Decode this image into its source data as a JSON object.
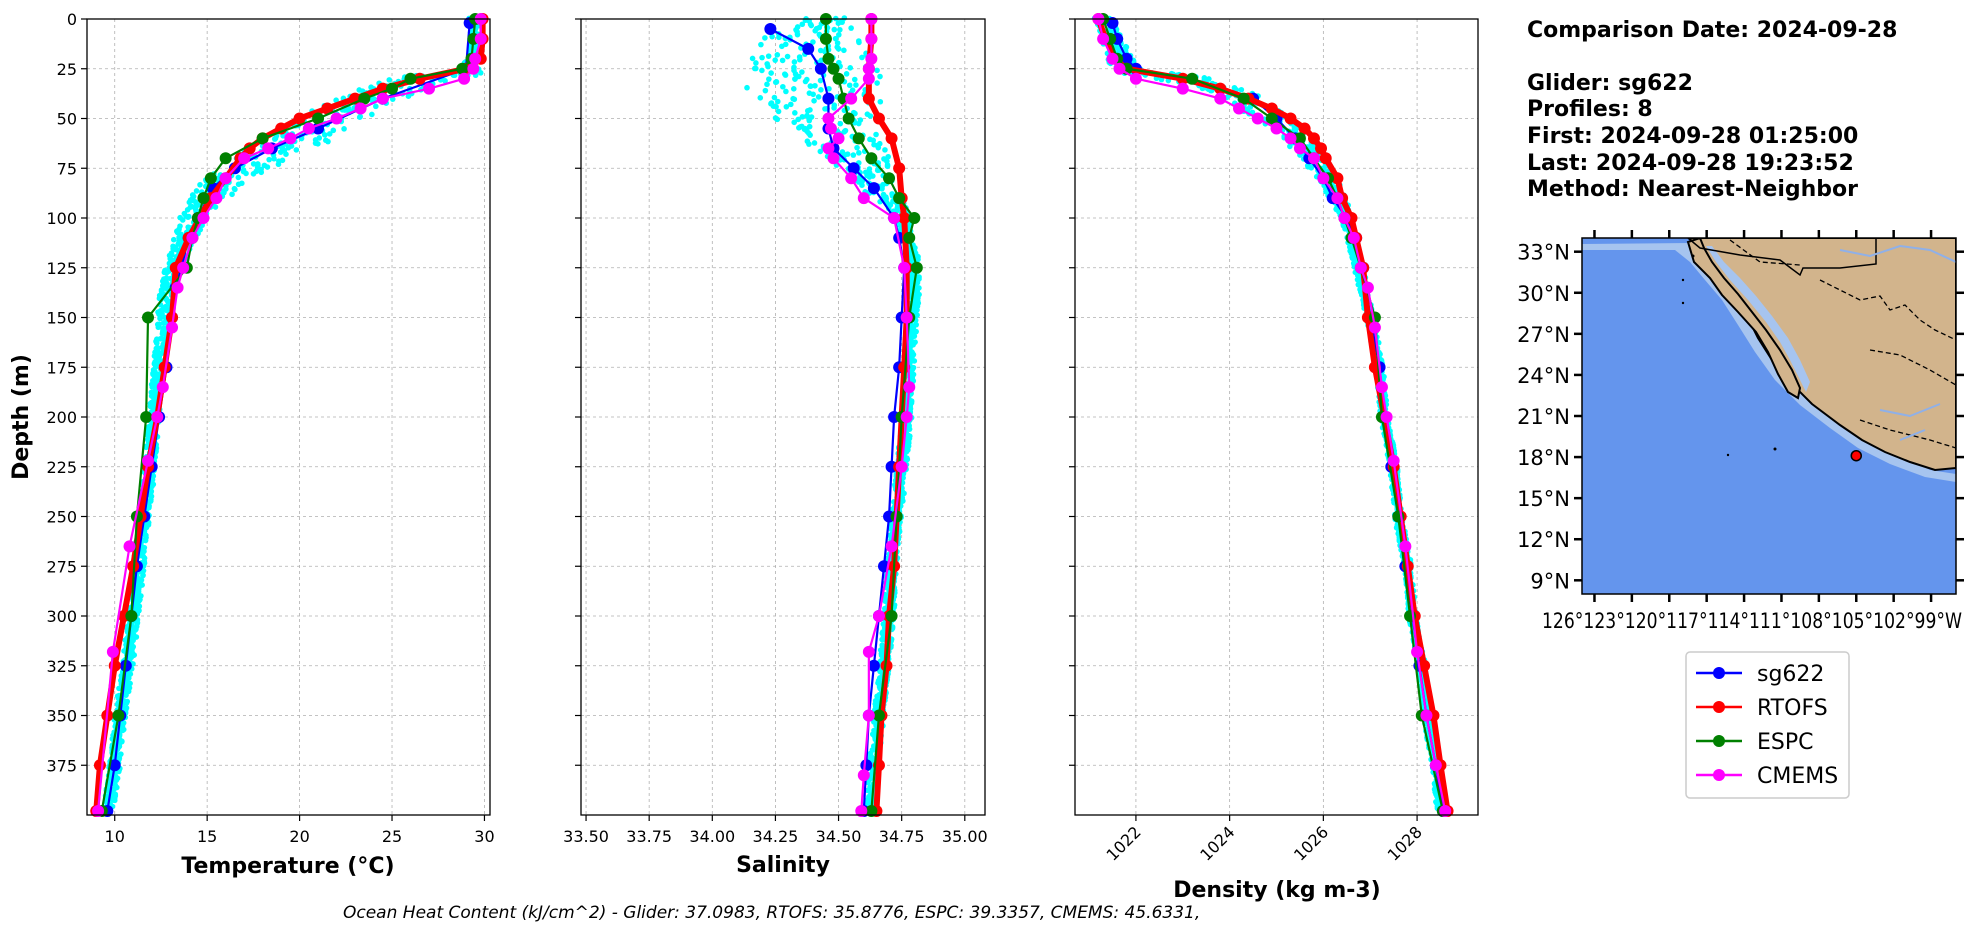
{
  "colors": {
    "glider_scatter": "#00FFFF",
    "sg622": "#0000FF",
    "RTOFS": "#FF0000",
    "ESPC": "#008000",
    "CMEMS": "#FF00FF",
    "ocean": "#6495ED",
    "shelf": "#A6C4EF",
    "land": "#D2B48C"
  },
  "info": {
    "comparison_date": "Comparison Date: 2024-09-28",
    "glider": "Glider: sg622",
    "profiles": "Profiles: 8",
    "first": "First: 2024-09-28 01:25:00",
    "last": "Last: 2024-09-28 19:23:52",
    "method": "Method: Nearest-Neighbor"
  },
  "footer": "Ocean Heat Content (kJ/cm^2) - Glider: 37.0983,  RTOFS: 35.8776,  ESPC: 39.3357,  CMEMS: 45.6331,",
  "legend": [
    "sg622",
    "RTOFS",
    "ESPC",
    "CMEMS"
  ],
  "map": {
    "lat_ticks": [
      "33°N",
      "30°N",
      "27°N",
      "24°N",
      "21°N",
      "18°N",
      "15°N",
      "12°N",
      "9°N"
    ],
    "lat_values": [
      33,
      30,
      27,
      24,
      21,
      18,
      15,
      12,
      9
    ],
    "lon_ticks_text": "126°123°120°117°114°111°108°105°102°99°W",
    "lon_range": [
      -127,
      -97
    ],
    "lat_range": [
      8,
      34
    ],
    "glider_location": [
      -105.0,
      18.1
    ]
  },
  "chart_data": [
    {
      "type": "line",
      "title": "",
      "xlabel": "Temperature (°C)",
      "ylabel": "Depth (m)",
      "xlim": [
        8.5,
        30.3
      ],
      "ylim": [
        400,
        0
      ],
      "xticks": [
        10,
        15,
        20,
        25,
        30
      ],
      "yticks": [
        0,
        25,
        50,
        75,
        100,
        125,
        150,
        175,
        200,
        225,
        250,
        275,
        300,
        325,
        350,
        375
      ],
      "grid": true,
      "glider_scatter": {
        "depth": [
          0,
          5,
          10,
          15,
          20,
          25,
          28,
          30,
          33,
          36,
          40,
          45,
          50,
          55,
          60,
          65,
          70,
          75,
          80,
          85,
          90,
          95,
          100,
          110,
          120,
          130,
          140,
          150,
          175,
          200,
          225,
          250,
          275,
          300,
          325,
          350,
          375,
          398
        ],
        "center": [
          29.4,
          29.5,
          29.5,
          29.5,
          29.4,
          29.2,
          28.3,
          26.8,
          25.6,
          24.8,
          23.8,
          22.7,
          21.8,
          21.0,
          20.3,
          19.0,
          18.0,
          17.0,
          16.2,
          15.5,
          15.0,
          14.6,
          14.3,
          13.8,
          13.4,
          13.0,
          12.8,
          12.7,
          12.4,
          12.1,
          11.9,
          11.6,
          11.3,
          11.0,
          10.7,
          10.3,
          10.0,
          9.7
        ],
        "spread": [
          0.3,
          0.3,
          0.3,
          0.3,
          0.3,
          0.6,
          1.6,
          1.8,
          2.0,
          1.9,
          1.9,
          1.8,
          1.8,
          1.8,
          1.7,
          1.6,
          1.5,
          1.4,
          1.3,
          1.2,
          1.1,
          0.9,
          0.8,
          0.6,
          0.5,
          0.4,
          0.4,
          0.4,
          0.3,
          0.3,
          0.3,
          0.3,
          0.3,
          0.3,
          0.3,
          0.3,
          0.3,
          0.3
        ]
      },
      "series": [
        {
          "name": "sg622",
          "depth": [
            2,
            25,
            40,
            55,
            65,
            75,
            85,
            100,
            110,
            125,
            135,
            150,
            175,
            200,
            225,
            250,
            275,
            300,
            325,
            350,
            375,
            398
          ],
          "values": [
            29.2,
            29.0,
            24.5,
            21.0,
            18.5,
            16.5,
            15.3,
            14.5,
            14.0,
            13.6,
            13.3,
            13.1,
            12.8,
            12.4,
            12.0,
            11.6,
            11.2,
            10.9,
            10.6,
            10.3,
            10.0,
            9.6
          ]
        },
        {
          "name": "RTOFS",
          "depth": [
            0,
            10,
            20,
            25,
            30,
            35,
            40,
            45,
            50,
            55,
            60,
            65,
            70,
            80,
            90,
            100,
            110,
            125,
            150,
            175,
            200,
            225,
            250,
            275,
            300,
            325,
            350,
            375,
            398
          ],
          "values": [
            29.9,
            29.9,
            29.8,
            29.0,
            26.5,
            24.5,
            23.0,
            21.5,
            20.0,
            19.0,
            18.0,
            17.3,
            16.8,
            16.0,
            15.2,
            14.6,
            14.0,
            13.3,
            13.1,
            12.7,
            12.3,
            11.8,
            11.4,
            11.0,
            10.5,
            10.0,
            9.6,
            9.2,
            9.0
          ]
        },
        {
          "name": "ESPC",
          "depth": [
            0,
            10,
            20,
            25,
            30,
            35,
            40,
            50,
            60,
            70,
            80,
            90,
            100,
            110,
            125,
            150,
            200,
            250,
            300,
            350,
            398
          ],
          "values": [
            29.5,
            29.4,
            29.3,
            28.8,
            26.0,
            25.0,
            23.5,
            21.0,
            18.0,
            16.0,
            15.2,
            14.8,
            14.5,
            14.2,
            13.9,
            11.8,
            11.7,
            11.2,
            10.9,
            10.2,
            9.3
          ]
        },
        {
          "name": "CMEMS",
          "depth": [
            0,
            10,
            20,
            25,
            30,
            35,
            40,
            45,
            50,
            55,
            60,
            65,
            70,
            80,
            90,
            100,
            110,
            125,
            135,
            155,
            185,
            200,
            222,
            265,
            318,
            398
          ],
          "values": [
            29.8,
            29.8,
            29.5,
            29.4,
            28.9,
            27.0,
            24.5,
            23.3,
            22.0,
            20.5,
            19.5,
            18.3,
            17.0,
            16.0,
            15.5,
            14.8,
            14.2,
            13.7,
            13.4,
            13.1,
            12.6,
            12.3,
            11.8,
            10.8,
            9.9,
            9.1
          ]
        }
      ]
    },
    {
      "type": "line",
      "title": "",
      "xlabel": "Salinity",
      "ylabel": "",
      "xlim": [
        33.48,
        35.08
      ],
      "ylim": [
        400,
        0
      ],
      "xticks": [
        33.5,
        33.75,
        34.0,
        34.25,
        34.5,
        34.75,
        35.0
      ],
      "grid": true,
      "glider_scatter": {
        "depth": [
          0,
          3,
          6,
          10,
          15,
          20,
          25,
          30,
          33,
          36,
          40,
          45,
          50,
          55,
          60,
          65,
          70,
          75,
          80,
          85,
          90,
          95,
          100,
          110,
          120,
          130,
          140,
          150,
          175,
          200,
          225,
          250,
          275,
          300,
          325,
          350,
          375,
          398
        ],
        "center": [
          34.45,
          34.45,
          34.42,
          34.38,
          34.4,
          34.4,
          34.4,
          34.4,
          34.38,
          34.42,
          34.43,
          34.44,
          34.44,
          34.47,
          34.5,
          34.55,
          34.58,
          34.6,
          34.63,
          34.66,
          34.7,
          34.73,
          34.75,
          34.77,
          34.8,
          34.8,
          34.8,
          34.79,
          34.78,
          34.77,
          34.75,
          34.73,
          34.71,
          34.7,
          34.68,
          34.66,
          34.64,
          34.63
        ],
        "spread": [
          0.08,
          0.1,
          0.15,
          0.2,
          0.2,
          0.25,
          0.25,
          0.28,
          0.35,
          0.28,
          0.25,
          0.2,
          0.2,
          0.18,
          0.15,
          0.15,
          0.12,
          0.1,
          0.08,
          0.07,
          0.05,
          0.04,
          0.03,
          0.02,
          0.02,
          0.02,
          0.02,
          0.02,
          0.02,
          0.02,
          0.02,
          0.02,
          0.02,
          0.02,
          0.02,
          0.02,
          0.02,
          0.02
        ]
      },
      "series": [
        {
          "name": "sg622",
          "depth": [
            5,
            15,
            25,
            40,
            55,
            65,
            75,
            85,
            100,
            110,
            125,
            150,
            175,
            200,
            225,
            250,
            275,
            300,
            325,
            350,
            375,
            398
          ],
          "values": [
            34.23,
            34.38,
            34.43,
            34.46,
            34.46,
            34.48,
            34.56,
            34.64,
            34.72,
            34.74,
            34.76,
            34.75,
            34.74,
            34.72,
            34.71,
            34.7,
            34.68,
            34.66,
            34.64,
            34.62,
            34.61,
            34.6
          ]
        },
        {
          "name": "RTOFS",
          "depth": [
            0,
            10,
            25,
            40,
            50,
            60,
            75,
            90,
            100,
            125,
            150,
            175,
            200,
            225,
            250,
            275,
            300,
            325,
            350,
            375,
            398
          ],
          "values": [
            34.63,
            34.63,
            34.62,
            34.62,
            34.66,
            34.71,
            34.74,
            34.75,
            34.76,
            34.77,
            34.77,
            34.76,
            34.75,
            34.74,
            34.73,
            34.72,
            34.7,
            34.69,
            34.67,
            34.66,
            34.65
          ]
        },
        {
          "name": "ESPC",
          "depth": [
            0,
            10,
            20,
            25,
            30,
            40,
            50,
            60,
            70,
            80,
            90,
            100,
            110,
            125,
            150,
            200,
            250,
            300,
            350,
            398
          ],
          "values": [
            34.45,
            34.45,
            34.46,
            34.48,
            34.5,
            34.52,
            34.54,
            34.58,
            34.63,
            34.7,
            34.74,
            34.8,
            34.78,
            34.81,
            34.78,
            34.75,
            34.73,
            34.71,
            34.66,
            34.63
          ]
        },
        {
          "name": "CMEMS",
          "depth": [
            0,
            10,
            20,
            25,
            30,
            40,
            50,
            55,
            60,
            65,
            70,
            80,
            90,
            100,
            125,
            150,
            185,
            200,
            225,
            265,
            300,
            318,
            350,
            380,
            398
          ],
          "values": [
            34.63,
            34.63,
            34.63,
            34.62,
            34.62,
            34.55,
            34.46,
            34.47,
            34.5,
            34.46,
            34.48,
            34.55,
            34.6,
            34.72,
            34.76,
            34.77,
            34.78,
            34.77,
            34.75,
            34.71,
            34.66,
            34.62,
            34.62,
            34.6,
            34.59
          ]
        }
      ]
    },
    {
      "type": "line",
      "title": "",
      "xlabel": "Density (kg m-3)",
      "ylabel": "",
      "xlim": [
        1020.7,
        1029.3
      ],
      "ylim": [
        400,
        0
      ],
      "xticks": [
        1022,
        1024,
        1026,
        1028
      ],
      "grid": true,
      "glider_scatter": {
        "depth": [
          0,
          5,
          10,
          15,
          20,
          25,
          28,
          30,
          33,
          36,
          40,
          45,
          50,
          55,
          60,
          65,
          70,
          75,
          80,
          85,
          90,
          95,
          100,
          110,
          120,
          130,
          140,
          150,
          175,
          200,
          225,
          250,
          275,
          300,
          325,
          350,
          375,
          398
        ],
        "center": [
          1021.3,
          1021.4,
          1021.5,
          1021.6,
          1021.7,
          1021.8,
          1022.5,
          1023.0,
          1023.6,
          1024.0,
          1024.3,
          1024.6,
          1024.9,
          1025.2,
          1025.4,
          1025.6,
          1025.8,
          1025.9,
          1026.1,
          1026.2,
          1026.3,
          1026.4,
          1026.5,
          1026.6,
          1026.7,
          1026.8,
          1026.9,
          1027.0,
          1027.2,
          1027.3,
          1027.5,
          1027.6,
          1027.8,
          1027.9,
          1028.1,
          1028.2,
          1028.4,
          1028.5
        ],
        "spread": [
          0.2,
          0.2,
          0.25,
          0.25,
          0.3,
          0.35,
          0.6,
          0.6,
          0.5,
          0.45,
          0.4,
          0.4,
          0.35,
          0.3,
          0.3,
          0.3,
          0.25,
          0.25,
          0.2,
          0.2,
          0.18,
          0.15,
          0.12,
          0.1,
          0.1,
          0.1,
          0.08,
          0.08,
          0.08,
          0.08,
          0.08,
          0.08,
          0.08,
          0.08,
          0.08,
          0.08,
          0.08,
          0.08
        ]
      },
      "series": [
        {
          "name": "sg622",
          "depth": [
            2,
            10,
            20,
            25,
            40,
            50,
            60,
            70,
            80,
            90,
            100,
            110,
            125,
            150,
            175,
            200,
            225,
            250,
            275,
            300,
            325,
            350,
            375,
            398
          ],
          "values": [
            1021.5,
            1021.6,
            1021.8,
            1022.0,
            1024.5,
            1025.0,
            1025.4,
            1025.7,
            1026.0,
            1026.2,
            1026.5,
            1026.7,
            1026.85,
            1027.0,
            1027.2,
            1027.3,
            1027.45,
            1027.6,
            1027.75,
            1027.9,
            1028.05,
            1028.2,
            1028.4,
            1028.55
          ]
        },
        {
          "name": "RTOFS",
          "depth": [
            0,
            10,
            20,
            25,
            30,
            35,
            40,
            45,
            50,
            55,
            60,
            65,
            70,
            80,
            90,
            100,
            110,
            125,
            150,
            175,
            200,
            225,
            250,
            275,
            300,
            325,
            350,
            375,
            398
          ],
          "values": [
            1021.2,
            1021.35,
            1021.55,
            1021.8,
            1023.0,
            1023.8,
            1024.4,
            1024.9,
            1025.3,
            1025.6,
            1025.8,
            1025.95,
            1026.05,
            1026.3,
            1026.4,
            1026.6,
            1026.7,
            1026.85,
            1026.95,
            1027.1,
            1027.3,
            1027.5,
            1027.65,
            1027.8,
            1027.95,
            1028.15,
            1028.35,
            1028.5,
            1028.65
          ]
        },
        {
          "name": "ESPC",
          "depth": [
            0,
            10,
            20,
            25,
            30,
            40,
            50,
            60,
            70,
            80,
            90,
            100,
            110,
            125,
            150,
            200,
            250,
            300,
            350,
            398
          ],
          "values": [
            1021.3,
            1021.45,
            1021.6,
            1021.8,
            1023.2,
            1024.3,
            1024.9,
            1025.5,
            1025.8,
            1026.1,
            1026.3,
            1026.45,
            1026.6,
            1026.8,
            1027.1,
            1027.25,
            1027.6,
            1027.85,
            1028.1,
            1028.55
          ]
        },
        {
          "name": "CMEMS",
          "depth": [
            0,
            10,
            20,
            25,
            30,
            35,
            40,
            45,
            50,
            55,
            60,
            65,
            70,
            80,
            90,
            100,
            110,
            125,
            135,
            155,
            185,
            200,
            222,
            265,
            318,
            350,
            375,
            398
          ],
          "values": [
            1021.2,
            1021.3,
            1021.5,
            1021.65,
            1022.0,
            1023.0,
            1023.8,
            1024.2,
            1024.6,
            1025.0,
            1025.3,
            1025.5,
            1025.8,
            1026.0,
            1026.3,
            1026.45,
            1026.65,
            1026.8,
            1026.95,
            1027.1,
            1027.25,
            1027.35,
            1027.5,
            1027.75,
            1028.0,
            1028.2,
            1028.4,
            1028.6
          ]
        }
      ]
    }
  ]
}
